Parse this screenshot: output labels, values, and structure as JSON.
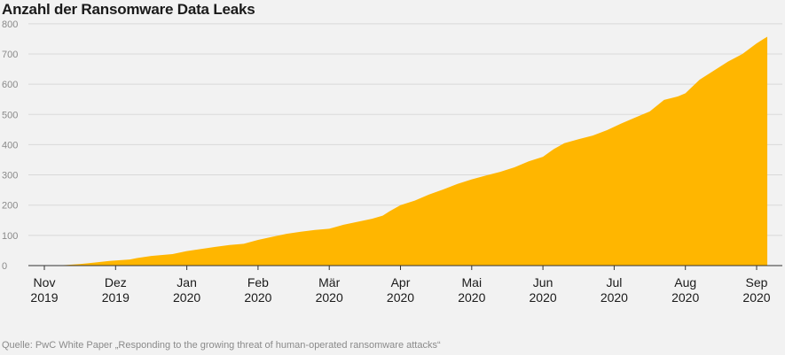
{
  "chart_data": {
    "type": "area",
    "title": "Anzahl der Ransomware Data Leaks",
    "source": "Quelle: PwC White Paper „Responding to the growing threat of human-operated ransomware attacks“",
    "color": "#FFB600",
    "ylim": [
      0,
      820
    ],
    "yticks": [
      0,
      100,
      200,
      300,
      400,
      500,
      600,
      700,
      800
    ],
    "xlim": [
      0,
      10.2
    ],
    "xticks": [
      {
        "x": 0,
        "line1": "Nov",
        "line2": "2019"
      },
      {
        "x": 1,
        "line1": "Dez",
        "line2": "2019"
      },
      {
        "x": 2,
        "line1": "Jan",
        "line2": "2020"
      },
      {
        "x": 3,
        "line1": "Feb",
        "line2": "2020"
      },
      {
        "x": 4,
        "line1": "Mär",
        "line2": "2020"
      },
      {
        "x": 5,
        "line1": "Apr",
        "line2": "2020"
      },
      {
        "x": 6,
        "line1": "Mai",
        "line2": "2020"
      },
      {
        "x": 7,
        "line1": "Jun",
        "line2": "2020"
      },
      {
        "x": 8,
        "line1": "Jul",
        "line2": "2020"
      },
      {
        "x": 9,
        "line1": "Aug",
        "line2": "2020"
      },
      {
        "x": 10,
        "line1": "Sep",
        "line2": "2020"
      }
    ],
    "series": [
      {
        "name": "Data Leaks",
        "points": [
          [
            0.1,
            0
          ],
          [
            0.3,
            2
          ],
          [
            0.5,
            5
          ],
          [
            0.7,
            10
          ],
          [
            0.9,
            15
          ],
          [
            1.0,
            17
          ],
          [
            1.2,
            20
          ],
          [
            1.3,
            25
          ],
          [
            1.5,
            32
          ],
          [
            1.8,
            38
          ],
          [
            2.0,
            48
          ],
          [
            2.2,
            55
          ],
          [
            2.4,
            62
          ],
          [
            2.6,
            68
          ],
          [
            2.8,
            72
          ],
          [
            3.0,
            85
          ],
          [
            3.2,
            95
          ],
          [
            3.4,
            105
          ],
          [
            3.6,
            112
          ],
          [
            3.8,
            118
          ],
          [
            4.0,
            122
          ],
          [
            4.2,
            135
          ],
          [
            4.4,
            145
          ],
          [
            4.6,
            155
          ],
          [
            4.75,
            165
          ],
          [
            4.85,
            180
          ],
          [
            5.0,
            200
          ],
          [
            5.2,
            215
          ],
          [
            5.4,
            235
          ],
          [
            5.6,
            252
          ],
          [
            5.8,
            270
          ],
          [
            6.0,
            285
          ],
          [
            6.2,
            298
          ],
          [
            6.4,
            310
          ],
          [
            6.6,
            325
          ],
          [
            6.8,
            345
          ],
          [
            7.0,
            360
          ],
          [
            7.15,
            385
          ],
          [
            7.3,
            405
          ],
          [
            7.5,
            418
          ],
          [
            7.7,
            430
          ],
          [
            7.9,
            448
          ],
          [
            8.1,
            470
          ],
          [
            8.3,
            490
          ],
          [
            8.5,
            510
          ],
          [
            8.7,
            548
          ],
          [
            8.9,
            560
          ],
          [
            9.0,
            570
          ],
          [
            9.2,
            615
          ],
          [
            9.4,
            645
          ],
          [
            9.6,
            675
          ],
          [
            9.8,
            700
          ],
          [
            10.0,
            735
          ],
          [
            10.1,
            750
          ],
          [
            10.15,
            757
          ]
        ]
      }
    ]
  }
}
